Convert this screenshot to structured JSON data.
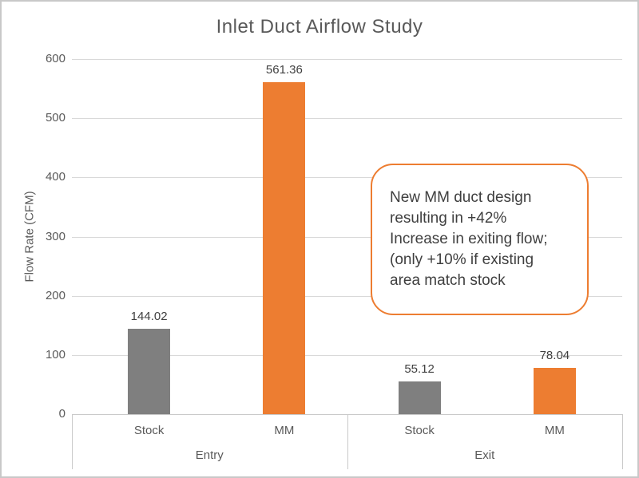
{
  "chart_data": {
    "type": "bar",
    "title": "Inlet Duct Airflow Study",
    "xlabel": "",
    "ylabel": "Flow Rate (CFM)",
    "ylim": [
      0,
      600
    ],
    "yticks": [
      0,
      100,
      200,
      300,
      400,
      500,
      600
    ],
    "grid": true,
    "legend_position": "none",
    "group_labels": [
      "Entry",
      "Exit"
    ],
    "categories": [
      "Stock",
      "MM",
      "Stock",
      "MM"
    ],
    "values": [
      144.02,
      561.36,
      55.12,
      78.04
    ],
    "bars": [
      {
        "group": "Entry",
        "label": "Stock",
        "value": 144.02,
        "value_label": "144.02",
        "color": "#7F7F7F"
      },
      {
        "group": "Entry",
        "label": "MM",
        "value": 561.36,
        "value_label": "561.36",
        "color": "#ED7D31"
      },
      {
        "group": "Exit",
        "label": "Stock",
        "value": 55.12,
        "value_label": "55.12",
        "color": "#7F7F7F"
      },
      {
        "group": "Exit",
        "label": "MM",
        "value": 78.04,
        "value_label": "78.04",
        "color": "#ED7D31"
      }
    ],
    "annotation": {
      "text": "New MM duct design resulting in +42% Increase in exiting flow; (only +10% if existing area match stock",
      "lines": [
        "New MM duct design",
        "resulting in +42%",
        "Increase in exiting flow;",
        "(only +10% if existing",
        "area match stock"
      ],
      "border_color": "#ED7D31"
    }
  },
  "colors": {
    "bar_stock": "#7F7F7F",
    "bar_mm": "#ED7D31",
    "gridline": "#D9D9D9",
    "axis_line": "#C9C9C9",
    "text_muted": "#595959",
    "text_dark": "#404040",
    "annotation_border": "#ED7D31",
    "frame_border": "#C8C8C8",
    "background": "#FFFFFF"
  }
}
